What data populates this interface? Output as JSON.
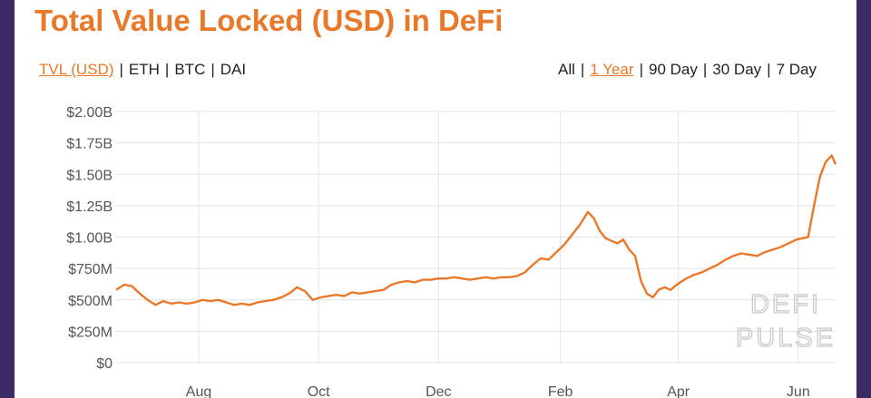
{
  "title": "Total Value Locked (USD) in DeFi",
  "metric_tabs": [
    {
      "label": "TVL (USD)",
      "active": true
    },
    {
      "label": "ETH",
      "active": false
    },
    {
      "label": "BTC",
      "active": false
    },
    {
      "label": "DAI",
      "active": false
    }
  ],
  "range_tabs": [
    {
      "label": "All",
      "active": false
    },
    {
      "label": "1 Year",
      "active": true
    },
    {
      "label": "90 Day",
      "active": false
    },
    {
      "label": "30 Day",
      "active": false
    },
    {
      "label": "7 Day",
      "active": false
    }
  ],
  "watermark": [
    "DEFI",
    "PULSE"
  ],
  "colors": {
    "accent": "#e8792b",
    "line": "#e8792b",
    "grid": "#e3e3e3",
    "axis_text": "#555555",
    "watermark": "#c9c9c9"
  },
  "chart_data": {
    "type": "line",
    "title": "Total Value Locked (USD) in DeFi",
    "xlabel": "",
    "ylabel": "",
    "y_ticks": [
      0,
      0.25,
      0.5,
      0.75,
      1.0,
      1.25,
      1.5,
      1.75,
      2.0
    ],
    "y_tick_labels": [
      "$0",
      "$250M",
      "$500M",
      "$750M",
      "$1.00B",
      "$1.25B",
      "$1.50B",
      "$1.75B",
      "$2.00B"
    ],
    "ylim": [
      0,
      2.0
    ],
    "x_range": [
      "2019-06-20",
      "2020-06-20"
    ],
    "x_ticks": [
      {
        "label": "Aug",
        "date": "2019-08-01"
      },
      {
        "label": "Oct",
        "date": "2019-10-01"
      },
      {
        "label": "Dec",
        "date": "2019-12-01"
      },
      {
        "label": "Feb",
        "date": "2020-02-01"
      },
      {
        "label": "Apr",
        "date": "2020-04-01"
      },
      {
        "label": "Jun",
        "date": "2020-06-01"
      }
    ],
    "grid": true,
    "series": [
      {
        "unit": "USD billions",
        "points": [
          [
            "2019-06-20",
            0.58
          ],
          [
            "2019-06-24",
            0.62
          ],
          [
            "2019-06-28",
            0.61
          ],
          [
            "2019-07-02",
            0.55
          ],
          [
            "2019-07-06",
            0.5
          ],
          [
            "2019-07-10",
            0.46
          ],
          [
            "2019-07-14",
            0.49
          ],
          [
            "2019-07-18",
            0.47
          ],
          [
            "2019-07-22",
            0.48
          ],
          [
            "2019-07-26",
            0.47
          ],
          [
            "2019-07-30",
            0.48
          ],
          [
            "2019-08-03",
            0.5
          ],
          [
            "2019-08-07",
            0.49
          ],
          [
            "2019-08-11",
            0.5
          ],
          [
            "2019-08-15",
            0.48
          ],
          [
            "2019-08-19",
            0.46
          ],
          [
            "2019-08-23",
            0.47
          ],
          [
            "2019-08-27",
            0.46
          ],
          [
            "2019-08-31",
            0.48
          ],
          [
            "2019-09-04",
            0.49
          ],
          [
            "2019-09-08",
            0.5
          ],
          [
            "2019-09-12",
            0.52
          ],
          [
            "2019-09-16",
            0.55
          ],
          [
            "2019-09-20",
            0.6
          ],
          [
            "2019-09-24",
            0.57
          ],
          [
            "2019-09-28",
            0.5
          ],
          [
            "2019-10-02",
            0.52
          ],
          [
            "2019-10-06",
            0.53
          ],
          [
            "2019-10-10",
            0.54
          ],
          [
            "2019-10-14",
            0.53
          ],
          [
            "2019-10-18",
            0.56
          ],
          [
            "2019-10-22",
            0.55
          ],
          [
            "2019-10-26",
            0.56
          ],
          [
            "2019-10-30",
            0.57
          ],
          [
            "2019-11-03",
            0.58
          ],
          [
            "2019-11-07",
            0.62
          ],
          [
            "2019-11-11",
            0.64
          ],
          [
            "2019-11-15",
            0.65
          ],
          [
            "2019-11-19",
            0.64
          ],
          [
            "2019-11-23",
            0.66
          ],
          [
            "2019-11-27",
            0.66
          ],
          [
            "2019-12-01",
            0.67
          ],
          [
            "2019-12-05",
            0.67
          ],
          [
            "2019-12-09",
            0.68
          ],
          [
            "2019-12-13",
            0.67
          ],
          [
            "2019-12-17",
            0.66
          ],
          [
            "2019-12-21",
            0.67
          ],
          [
            "2019-12-25",
            0.68
          ],
          [
            "2019-12-29",
            0.67
          ],
          [
            "2020-01-02",
            0.68
          ],
          [
            "2020-01-06",
            0.68
          ],
          [
            "2020-01-10",
            0.69
          ],
          [
            "2020-01-14",
            0.72
          ],
          [
            "2020-01-18",
            0.78
          ],
          [
            "2020-01-22",
            0.83
          ],
          [
            "2020-01-26",
            0.82
          ],
          [
            "2020-01-30",
            0.88
          ],
          [
            "2020-02-03",
            0.94
          ],
          [
            "2020-02-07",
            1.02
          ],
          [
            "2020-02-11",
            1.1
          ],
          [
            "2020-02-15",
            1.2
          ],
          [
            "2020-02-18",
            1.15
          ],
          [
            "2020-02-21",
            1.05
          ],
          [
            "2020-02-24",
            0.99
          ],
          [
            "2020-02-27",
            0.97
          ],
          [
            "2020-03-01",
            0.95
          ],
          [
            "2020-03-04",
            0.98
          ],
          [
            "2020-03-07",
            0.9
          ],
          [
            "2020-03-10",
            0.85
          ],
          [
            "2020-03-13",
            0.65
          ],
          [
            "2020-03-16",
            0.55
          ],
          [
            "2020-03-19",
            0.52
          ],
          [
            "2020-03-22",
            0.58
          ],
          [
            "2020-03-25",
            0.6
          ],
          [
            "2020-03-28",
            0.58
          ],
          [
            "2020-04-01",
            0.63
          ],
          [
            "2020-04-05",
            0.67
          ],
          [
            "2020-04-09",
            0.7
          ],
          [
            "2020-04-13",
            0.72
          ],
          [
            "2020-04-17",
            0.75
          ],
          [
            "2020-04-21",
            0.78
          ],
          [
            "2020-04-25",
            0.82
          ],
          [
            "2020-04-29",
            0.85
          ],
          [
            "2020-05-03",
            0.87
          ],
          [
            "2020-05-07",
            0.86
          ],
          [
            "2020-05-11",
            0.85
          ],
          [
            "2020-05-15",
            0.88
          ],
          [
            "2020-05-19",
            0.9
          ],
          [
            "2020-05-23",
            0.92
          ],
          [
            "2020-05-27",
            0.95
          ],
          [
            "2020-05-31",
            0.98
          ],
          [
            "2020-06-03",
            0.99
          ],
          [
            "2020-06-06",
            1.0
          ],
          [
            "2020-06-09",
            1.25
          ],
          [
            "2020-06-12",
            1.48
          ],
          [
            "2020-06-15",
            1.6
          ],
          [
            "2020-06-18",
            1.65
          ],
          [
            "2020-06-20",
            1.58
          ]
        ]
      }
    ]
  }
}
